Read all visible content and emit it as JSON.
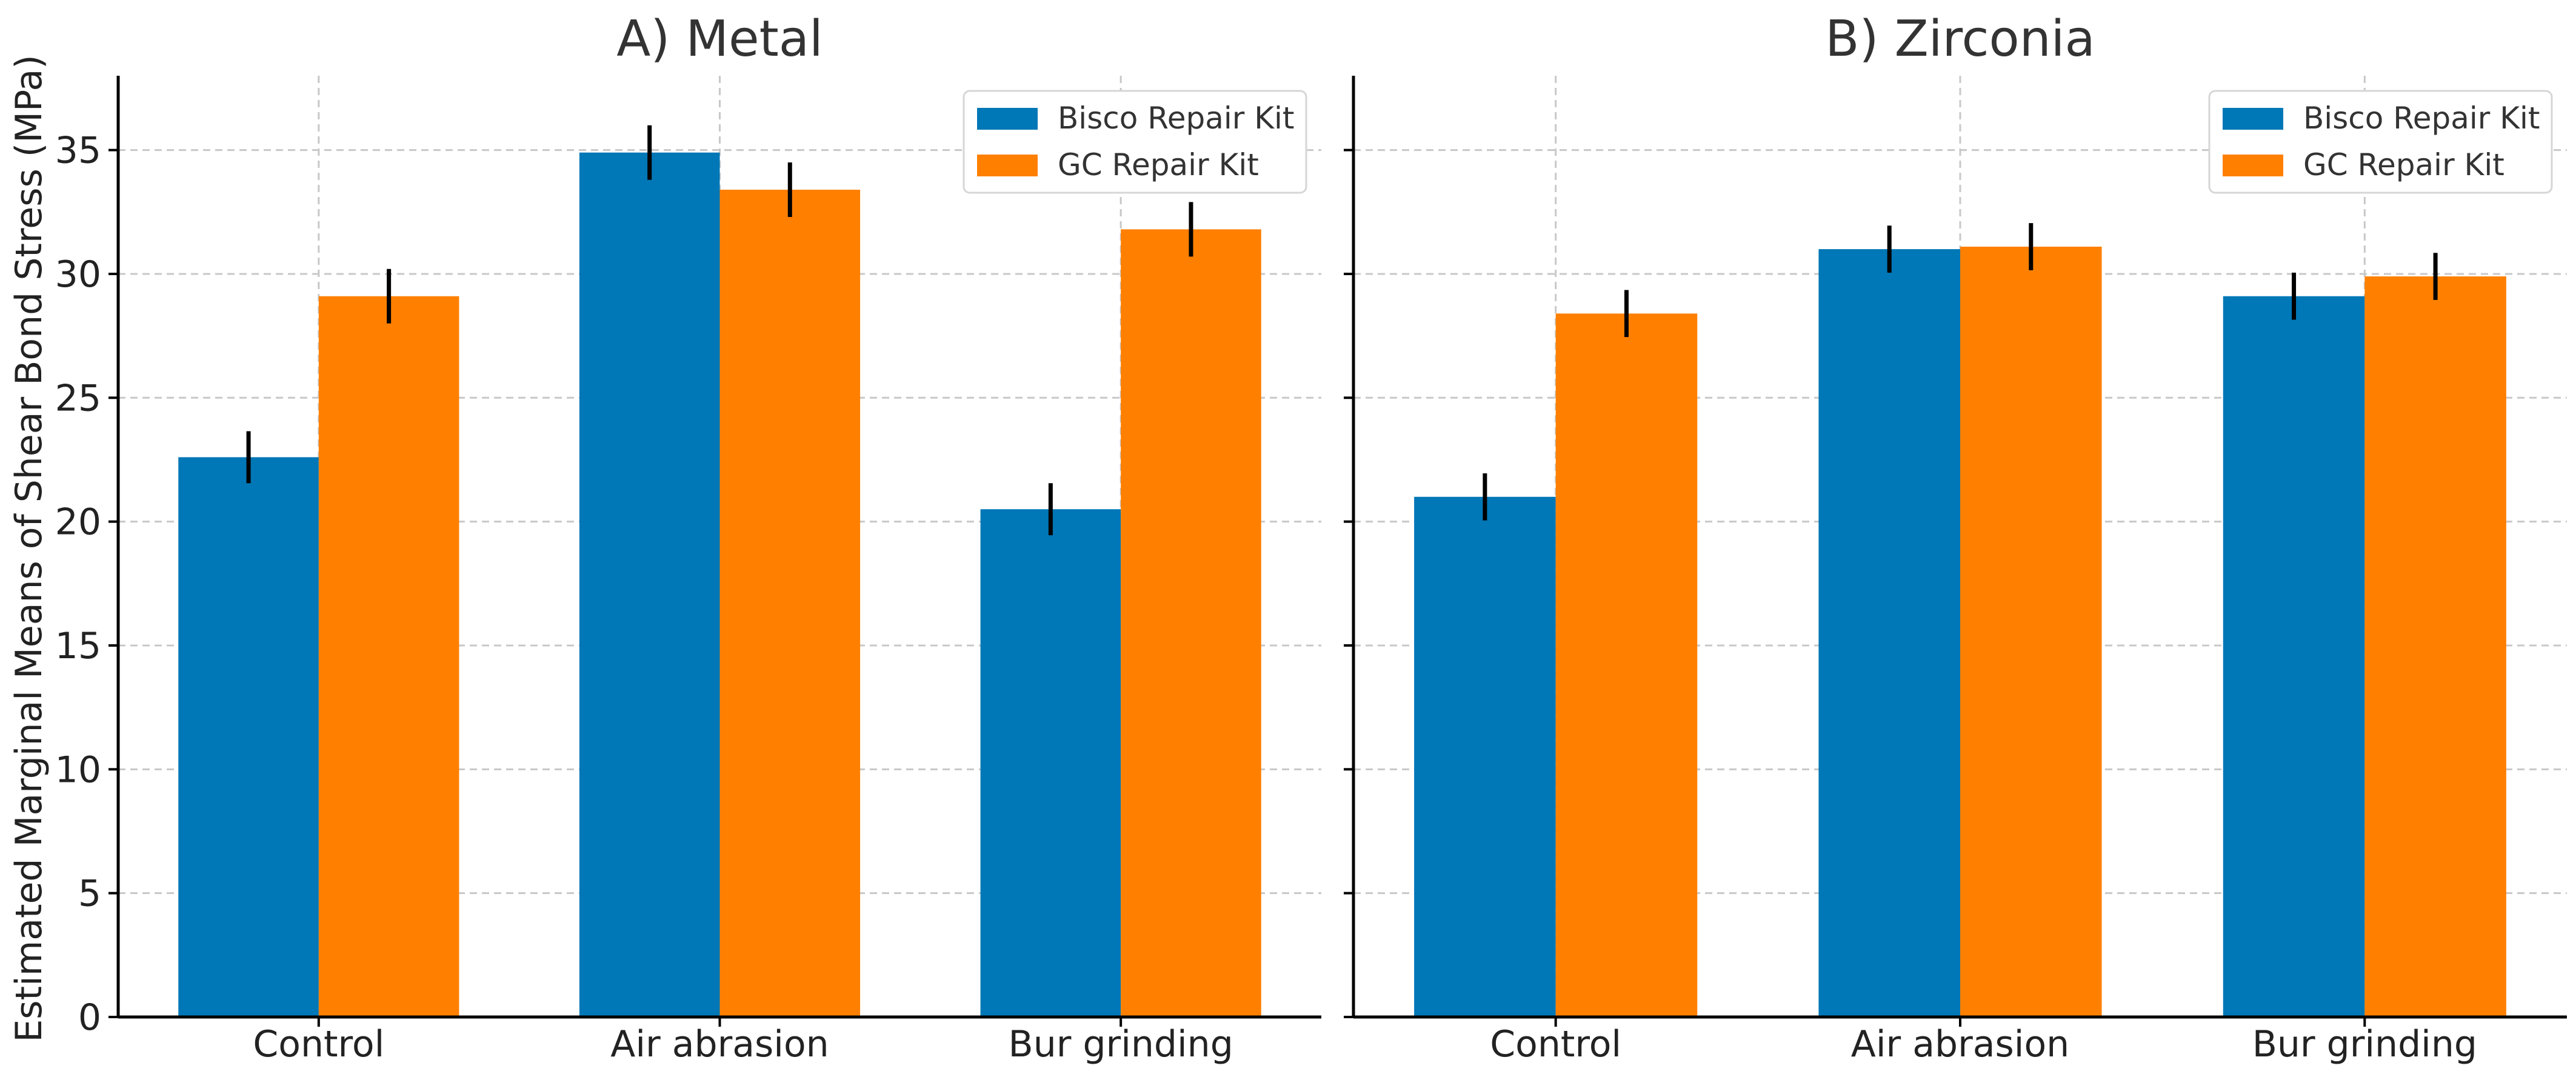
{
  "chart_data": [
    {
      "type": "bar",
      "title": "A) Metal",
      "categories": [
        "Control",
        "Air abrasion",
        "Bur grinding"
      ],
      "series": [
        {
          "name": "Bisco Repair Kit",
          "color": "#0077b6",
          "values": [
            22.6,
            34.9,
            20.5
          ],
          "errors": [
            1.05,
            1.1,
            1.05
          ]
        },
        {
          "name": "GC Repair Kit",
          "color": "#ff8000",
          "values": [
            29.1,
            33.4,
            31.8
          ],
          "errors": [
            1.1,
            1.1,
            1.1
          ]
        }
      ],
      "ylabel": "Estimated Marginal Means of Shear Bond Stress (MPa)",
      "ylim": [
        0,
        38
      ],
      "yticks": [
        "0",
        "5",
        "10",
        "15",
        "20",
        "25",
        "30",
        "35"
      ],
      "grid": true,
      "legend_position": "top-right"
    },
    {
      "type": "bar",
      "title": "B) Zirconia",
      "categories": [
        "Control",
        "Air abrasion",
        "Bur grinding"
      ],
      "series": [
        {
          "name": "Bisco Repair Kit",
          "color": "#0077b6",
          "values": [
            21.0,
            31.0,
            29.1
          ],
          "errors": [
            0.95,
            0.95,
            0.95
          ]
        },
        {
          "name": "GC Repair Kit",
          "color": "#ff8000",
          "values": [
            28.4,
            31.1,
            29.9
          ],
          "errors": [
            0.95,
            0.95,
            0.95
          ]
        }
      ],
      "ylim": [
        0,
        38
      ],
      "yticks": [
        "0",
        "5",
        "10",
        "15",
        "20",
        "25",
        "30",
        "35"
      ],
      "grid": true,
      "legend_position": "top-right"
    }
  ]
}
